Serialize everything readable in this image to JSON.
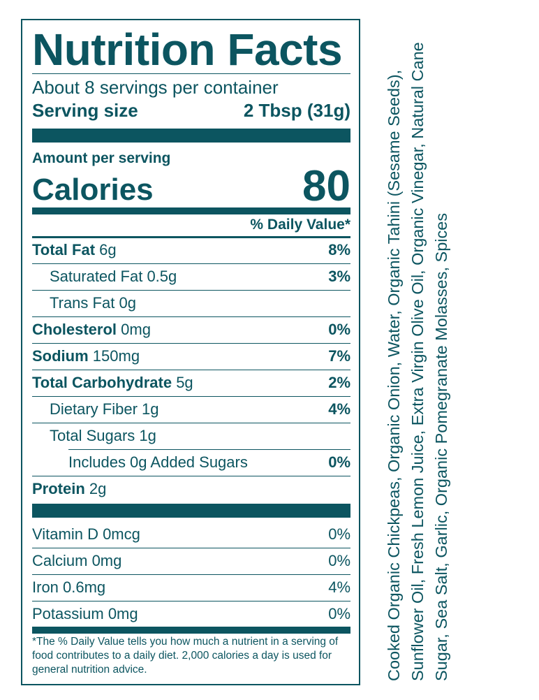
{
  "label": {
    "title": "Nutrition Facts",
    "servings_per_container": "About 8 servings per container",
    "serving_size_label": "Serving size",
    "serving_size_value": "2 Tbsp (31g)",
    "amount_per_serving": "Amount per serving",
    "calories_label": "Calories",
    "calories_value": "80",
    "daily_value_header": "% Daily Value*",
    "nutrients": [
      {
        "name": "Total Fat",
        "amount": "6g",
        "dv": "8%"
      },
      {
        "name": "Saturated Fat",
        "amount": "0.5g",
        "dv": "3%"
      },
      {
        "name": "Trans Fat",
        "amount": "0g",
        "dv": ""
      },
      {
        "name": "Cholesterol",
        "amount": "0mg",
        "dv": "0%"
      },
      {
        "name": "Sodium",
        "amount": "150mg",
        "dv": "7%"
      },
      {
        "name": "Total Carbohydrate",
        "amount": "5g",
        "dv": "2%"
      },
      {
        "name": "Dietary Fiber",
        "amount": "1g",
        "dv": "4%"
      },
      {
        "name": "Total Sugars",
        "amount": "1g",
        "dv": ""
      },
      {
        "name": "Includes 0g Added Sugars",
        "amount": "",
        "dv": "0%"
      },
      {
        "name": "Protein",
        "amount": "2g",
        "dv": ""
      }
    ],
    "vitamins": [
      {
        "text": "Vitamin D 0mcg",
        "dv": "0%"
      },
      {
        "text": "Calcium 0mg",
        "dv": "0%"
      },
      {
        "text": "Iron 0.6mg",
        "dv": "4%"
      },
      {
        "text": "Potassium 0mg",
        "dv": "0%"
      }
    ],
    "footnote": "*The % Daily Value tells you how much a nutrient in a serving of food contributes to a daily diet. 2,000 calories a day is used for general nutrition advice."
  },
  "ingredients": "Cooked Organic Chickpeas, Organic Onion, Water, Organic Tahini (Sesame Seeds), Sunflower Oil, Fresh Lemon Juice, Extra Virgin Olive Oil, Organic Vinegar, Natural Cane Sugar, Sea Salt, Garlic, Organic Pomegranate Molasses, Spices",
  "colors": {
    "ink": "#0c5560",
    "background": "#ffffff"
  }
}
